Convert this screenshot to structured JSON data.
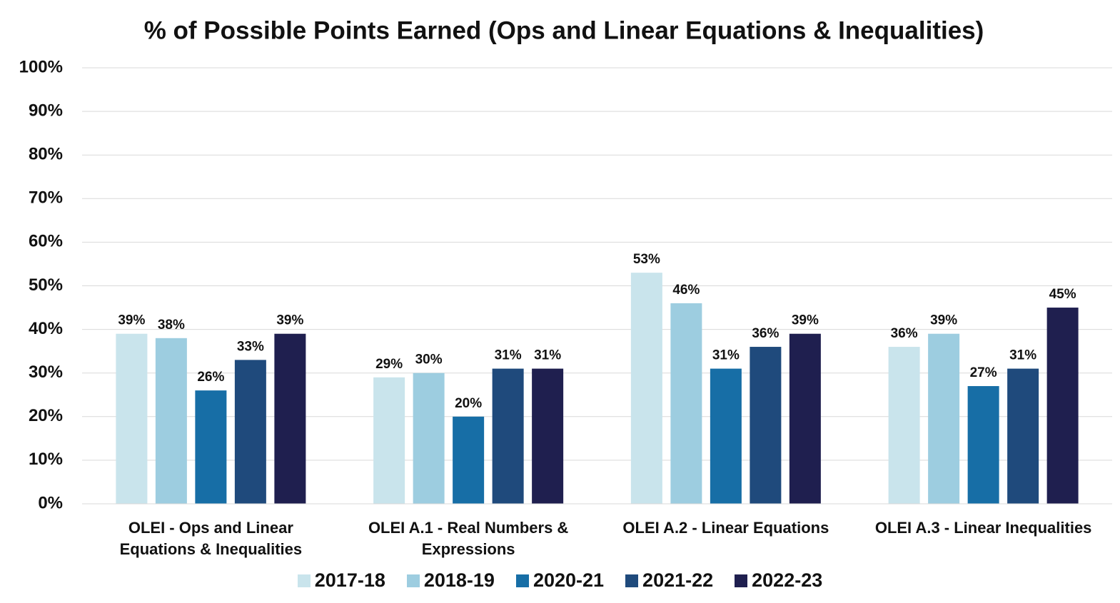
{
  "chart_data": {
    "type": "bar",
    "title": "% of Possible Points Earned (Ops and Linear Equations & Inequalities)",
    "categories": [
      "OLEI - Ops and Linear Equations & Inequalities",
      "OLEI A.1 - Real Numbers & Expressions",
      "OLEI A.2 - Linear Equations",
      "OLEI A.3 - Linear Inequalities"
    ],
    "series": [
      {
        "name": "2017-18",
        "color": "#c9e4ec",
        "values": [
          39,
          29,
          53,
          36
        ],
        "value_labels": [
          "39%",
          "29%",
          "53%",
          "36%"
        ]
      },
      {
        "name": "2018-19",
        "color": "#9dcde0",
        "values": [
          38,
          30,
          46,
          39
        ],
        "value_labels": [
          "38%",
          "30%",
          "46%",
          "39%"
        ]
      },
      {
        "name": "2020-21",
        "color": "#176ea6",
        "values": [
          26,
          20,
          31,
          27
        ],
        "value_labels": [
          "26%",
          "20%",
          "31%",
          "27%"
        ]
      },
      {
        "name": "2021-22",
        "color": "#1f4a7c",
        "values": [
          33,
          31,
          36,
          31
        ],
        "value_labels": [
          "33%",
          "31%",
          "36%",
          "31%"
        ]
      },
      {
        "name": "2022-23",
        "color": "#1f1f4f",
        "values": [
          39,
          31,
          39,
          45
        ],
        "value_labels": [
          "39%",
          "31%",
          "39%",
          "45%"
        ]
      }
    ],
    "ylim": [
      0,
      100
    ],
    "yticks": [
      {
        "value": 0,
        "label": "0%"
      },
      {
        "value": 10,
        "label": "10%"
      },
      {
        "value": 20,
        "label": "20%"
      },
      {
        "value": 30,
        "label": "30%"
      },
      {
        "value": 40,
        "label": "40%"
      },
      {
        "value": 50,
        "label": "50%"
      },
      {
        "value": 60,
        "label": "60%"
      },
      {
        "value": 70,
        "label": "70%"
      },
      {
        "value": 80,
        "label": "80%"
      },
      {
        "value": 90,
        "label": "90%"
      },
      {
        "value": 100,
        "label": "100%"
      }
    ],
    "grid": true,
    "legend": "bottom"
  }
}
